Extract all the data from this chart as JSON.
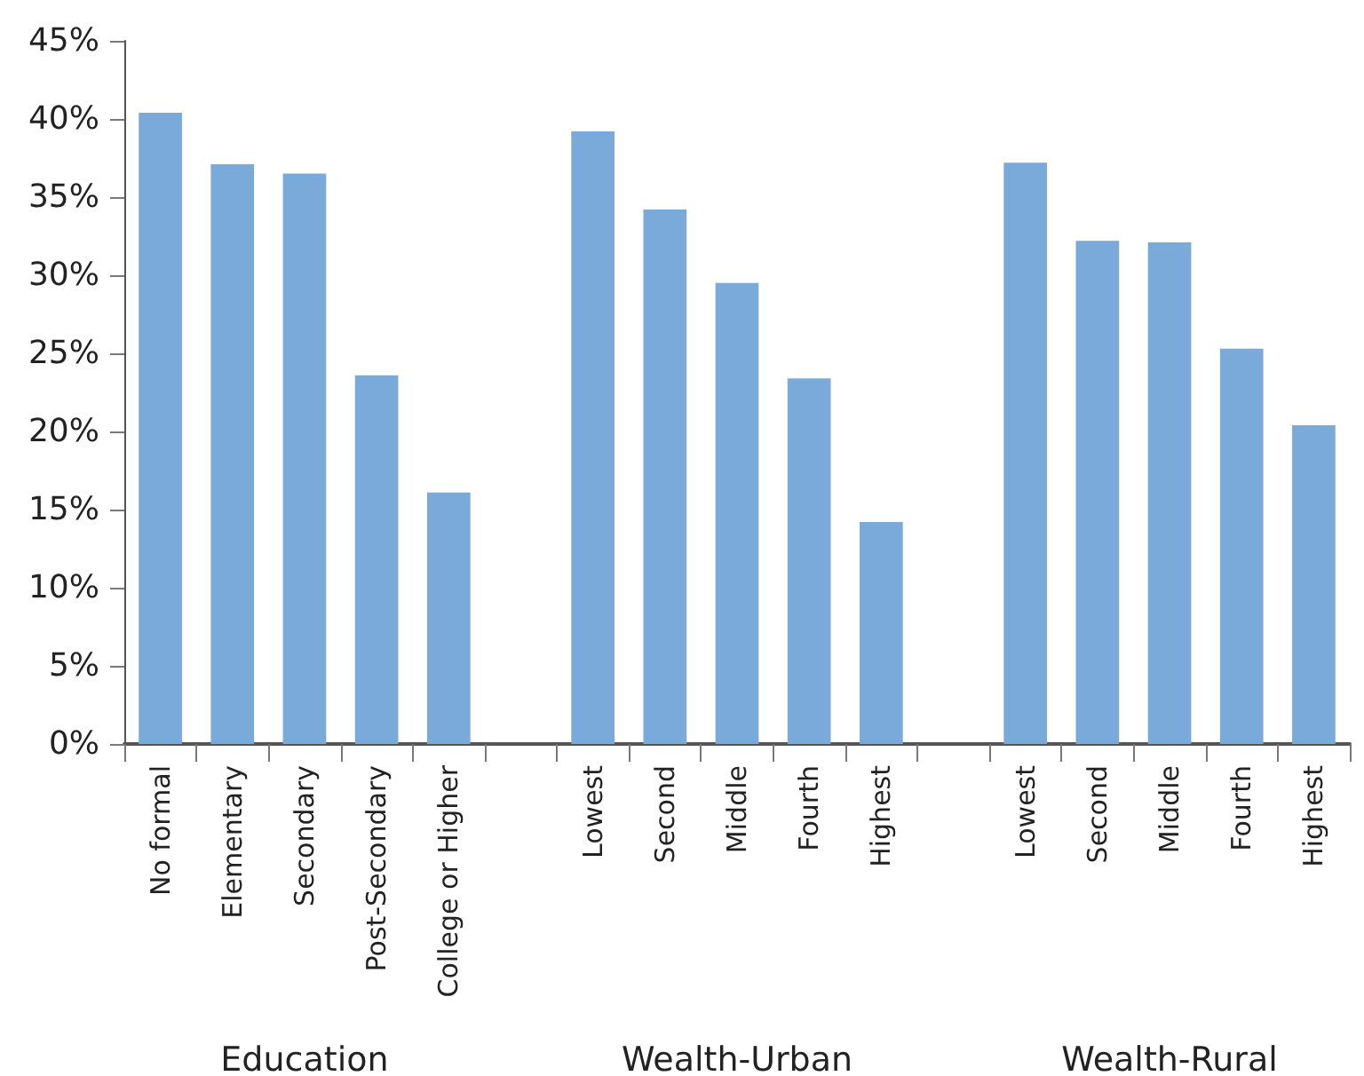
{
  "chart_data": {
    "type": "bar",
    "categories": [
      "No formal",
      "Elementary",
      "Secondary",
      "Post-Secondary",
      "College or Higher",
      null,
      "Lowest",
      "Second",
      "Middle",
      "Fourth",
      "Highest",
      null,
      "Lowest",
      "Second",
      "Middle",
      "Fourth",
      "Highest"
    ],
    "values": [
      40.4,
      37.1,
      36.5,
      23.6,
      16.1,
      null,
      39.2,
      34.2,
      29.5,
      23.4,
      14.2,
      null,
      37.2,
      32.2,
      32.1,
      25.3,
      20.4
    ],
    "color": "#7aaad9",
    "ylim": [
      0,
      45
    ],
    "yticks": [
      {
        "value": 0,
        "label": "0%"
      },
      {
        "value": 5,
        "label": "5%"
      },
      {
        "value": 10,
        "label": "10%"
      },
      {
        "value": 15,
        "label": "15%"
      },
      {
        "value": 20,
        "label": "20%"
      },
      {
        "value": 25,
        "label": "25%"
      },
      {
        "value": 30,
        "label": "30%"
      },
      {
        "value": 35,
        "label": "35%"
      },
      {
        "value": 40,
        "label": "40%"
      },
      {
        "value": 45,
        "label": "45%"
      }
    ],
    "annotations": [
      "Education",
      "Wealth-Urban",
      "Wealth-Rural"
    ]
  }
}
